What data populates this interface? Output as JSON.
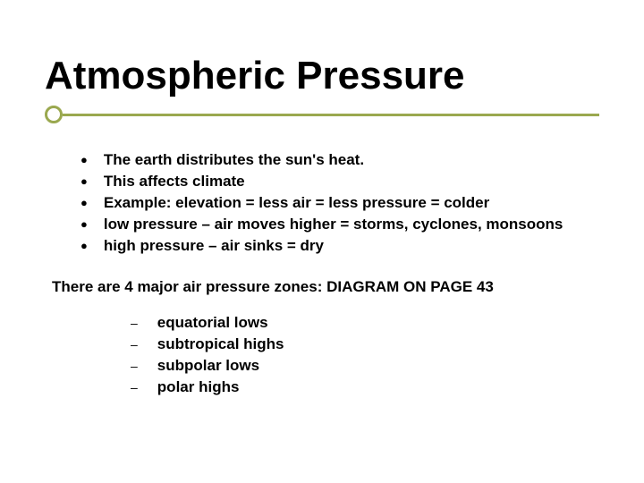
{
  "title": "Atmospheric Pressure",
  "accent_color": "#9aa84f",
  "text_color": "#000000",
  "background_color": "#ffffff",
  "title_fontsize": 44,
  "body_fontsize": 17,
  "bullets": [
    "The earth distributes the sun's heat.",
    "This affects climate",
    "Example: elevation = less air = less pressure = colder",
    "low pressure – air moves higher = storms, cyclones, monsoons",
    "high pressure – air sinks = dry"
  ],
  "subheading": "There are 4 major air pressure zones: DIAGRAM ON PAGE 43",
  "sublist": [
    "equatorial lows",
    "subtropical highs",
    "subpolar lows",
    "polar highs"
  ],
  "bullet_glyph": "●",
  "dash_glyph": "–"
}
